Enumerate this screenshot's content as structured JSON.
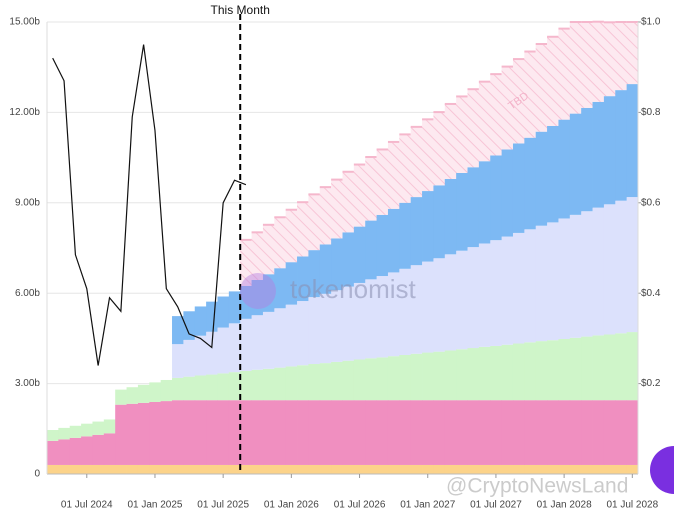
{
  "chart_data": {
    "type": "area",
    "x": [
      "2024-04-01",
      "2024-05-01",
      "2024-06-01",
      "2024-07-01",
      "2024-08-01",
      "2024-09-01",
      "2024-10-01",
      "2024-11-01",
      "2024-12-01",
      "2025-01-01",
      "2025-02-01",
      "2025-03-01",
      "2025-04-01",
      "2025-05-01",
      "2025-06-01",
      "2025-07-01",
      "2025-08-01",
      "2025-09-01",
      "2025-10-01",
      "2025-11-01",
      "2025-12-01",
      "2026-01-01",
      "2026-02-01",
      "2026-03-01",
      "2026-04-01",
      "2026-05-01",
      "2026-06-01",
      "2026-07-01",
      "2026-08-01",
      "2026-09-01",
      "2026-10-01",
      "2026-11-01",
      "2026-12-01",
      "2027-01-01",
      "2027-02-01",
      "2027-03-01",
      "2027-04-01",
      "2027-05-01",
      "2027-06-01",
      "2027-07-01",
      "2027-08-01",
      "2027-09-01",
      "2027-10-01",
      "2027-11-01",
      "2027-12-01",
      "2028-01-01",
      "2028-02-01",
      "2028-03-01",
      "2028-04-01",
      "2028-05-01",
      "2028-06-01",
      "2028-07-01"
    ],
    "series": [
      {
        "color": "#fcd38a",
        "values": [
          0.3,
          0.3,
          0.3,
          0.3,
          0.3,
          0.3,
          0.3,
          0.3,
          0.3,
          0.3,
          0.3,
          0.3,
          0.3,
          0.3,
          0.3,
          0.3,
          0.3,
          0.3,
          0.3,
          0.3,
          0.3,
          0.3,
          0.3,
          0.3,
          0.3,
          0.3,
          0.3,
          0.3,
          0.3,
          0.3,
          0.3,
          0.3,
          0.3,
          0.3,
          0.3,
          0.3,
          0.3,
          0.3,
          0.3,
          0.3,
          0.3,
          0.3,
          0.3,
          0.3,
          0.3,
          0.3,
          0.3,
          0.3,
          0.3,
          0.3,
          0.3,
          0.3
        ]
      },
      {
        "color": "#f08fc0",
        "values": [
          0.8,
          0.85,
          0.9,
          0.95,
          1.0,
          1.05,
          2.0,
          2.03,
          2.06,
          2.09,
          2.12,
          2.15,
          2.15,
          2.15,
          2.15,
          2.15,
          2.15,
          2.15,
          2.15,
          2.15,
          2.15,
          2.15,
          2.15,
          2.15,
          2.15,
          2.15,
          2.15,
          2.15,
          2.15,
          2.15,
          2.15,
          2.15,
          2.15,
          2.15,
          2.15,
          2.15,
          2.15,
          2.15,
          2.15,
          2.15,
          2.15,
          2.15,
          2.15,
          2.15,
          2.15,
          2.15,
          2.15,
          2.15,
          2.15,
          2.15,
          2.15,
          2.15
        ]
      },
      {
        "color": "#cff5c9",
        "values": [
          0.36,
          0.38,
          0.4,
          0.42,
          0.44,
          0.46,
          0.5,
          0.55,
          0.6,
          0.65,
          0.7,
          0.74,
          0.78,
          0.82,
          0.85,
          0.89,
          0.93,
          0.97,
          1.01,
          1.04,
          1.08,
          1.12,
          1.16,
          1.2,
          1.23,
          1.27,
          1.31,
          1.35,
          1.39,
          1.42,
          1.46,
          1.5,
          1.54,
          1.58,
          1.61,
          1.65,
          1.69,
          1.73,
          1.77,
          1.8,
          1.84,
          1.88,
          1.92,
          1.96,
          1.99,
          2.03,
          2.07,
          2.11,
          2.15,
          2.18,
          2.22,
          2.26
        ]
      },
      {
        "color": "#dce1fc",
        "values": [
          0,
          0,
          0,
          0,
          0,
          0,
          0,
          0,
          0,
          0,
          0,
          1.12,
          1.22,
          1.32,
          1.42,
          1.52,
          1.62,
          1.73,
          1.81,
          1.89,
          1.97,
          2.05,
          2.13,
          2.22,
          2.3,
          2.38,
          2.46,
          2.54,
          2.62,
          2.7,
          2.78,
          2.86,
          2.94,
          3.02,
          3.1,
          3.19,
          3.27,
          3.35,
          3.43,
          3.51,
          3.59,
          3.67,
          3.75,
          3.83,
          3.91,
          4.0,
          4.08,
          4.16,
          4.24,
          4.32,
          4.4,
          4.48
        ]
      },
      {
        "color": "#7db9f3",
        "values": [
          0,
          0,
          0,
          0,
          0,
          0,
          0,
          0,
          0,
          0,
          0,
          0.93,
          0.95,
          0.97,
          1.0,
          1.03,
          1.06,
          1.09,
          1.17,
          1.25,
          1.33,
          1.41,
          1.48,
          1.56,
          1.64,
          1.72,
          1.8,
          1.87,
          1.95,
          2.03,
          2.11,
          2.19,
          2.26,
          2.34,
          2.42,
          2.5,
          2.58,
          2.65,
          2.73,
          2.81,
          2.89,
          2.97,
          3.04,
          3.12,
          3.2,
          3.28,
          3.36,
          3.43,
          3.51,
          3.59,
          3.67,
          3.75
        ]
      },
      {
        "color": "#fde6ee",
        "hatch": "#f5b7cc",
        "values": [
          0,
          0,
          0,
          0,
          0,
          0,
          0,
          0,
          0,
          0,
          0,
          0,
          0,
          0,
          0,
          0,
          0,
          1.53,
          1.58,
          1.64,
          1.69,
          1.74,
          1.8,
          1.85,
          1.9,
          1.95,
          2.01,
          2.06,
          2.11,
          2.17,
          2.22,
          2.27,
          2.33,
          2.38,
          2.43,
          2.49,
          2.54,
          2.59,
          2.64,
          2.7,
          2.75,
          2.8,
          2.86,
          2.91,
          2.96,
          3.02,
          3.04,
          2.85,
          2.66,
          2.45,
          2.26,
          2.06
        ],
        "label": "TBD"
      },
      {
        "color": "#111111",
        "axis": "y2",
        "values": [
          0.92,
          0.87,
          0.485,
          0.41,
          0.24,
          0.39,
          0.36,
          0.79,
          0.95,
          0.76,
          0.41,
          0.37,
          0.31,
          0.3,
          0.28,
          0.6,
          0.65,
          0.64,
          null,
          null,
          null,
          null,
          null,
          null,
          null,
          null,
          null,
          null,
          null,
          null,
          null,
          null,
          null,
          null,
          null,
          null,
          null,
          null,
          null,
          null,
          null,
          null,
          null,
          null,
          null,
          null,
          null,
          null,
          null,
          null,
          null,
          null
        ]
      }
    ],
    "ylim": [
      0,
      15
    ],
    "yticks": [
      0,
      {
        "value": 3,
        "label": "3.00b"
      },
      {
        "value": 6,
        "label": "6.00b"
      },
      {
        "value": 9,
        "label": "9.00b"
      },
      {
        "value": 12,
        "label": "12.00b"
      },
      {
        "value": 15,
        "label": "15.00b"
      }
    ],
    "y2lim": [
      0,
      1
    ],
    "y2ticks": [
      {
        "value": 0.2,
        "label": "$0.2"
      },
      {
        "value": 0.4,
        "label": "$0.4"
      },
      {
        "value": 0.6,
        "label": "$0.6"
      },
      {
        "value": 0.8,
        "label": "$0.8"
      },
      {
        "value": 1,
        "label": "$1.0"
      }
    ],
    "xticks": [
      {
        "value": "2024-07-01",
        "label": "01 Jul 2024"
      },
      {
        "value": "2025-01-01",
        "label": "01 Jan 2025"
      },
      {
        "value": "2025-07-01",
        "label": "01 Jul 2025"
      },
      {
        "value": "2026-01-01",
        "label": "01 Jan 2026"
      },
      {
        "value": "2026-07-01",
        "label": "01 Jul 2026"
      },
      {
        "value": "2027-01-01",
        "label": "01 Jan 2027"
      },
      {
        "value": "2027-07-01",
        "label": "01 Jul 2027"
      },
      {
        "value": "2028-01-01",
        "label": "01 Jan 2028"
      },
      {
        "value": "2028-07-01",
        "label": "01 Jul 2028"
      }
    ],
    "grid": true,
    "annotation": {
      "text": "This Month",
      "x": "2025-09-01"
    },
    "watermarks": [
      "tokenomist",
      "@CryptoNewsLand"
    ]
  }
}
